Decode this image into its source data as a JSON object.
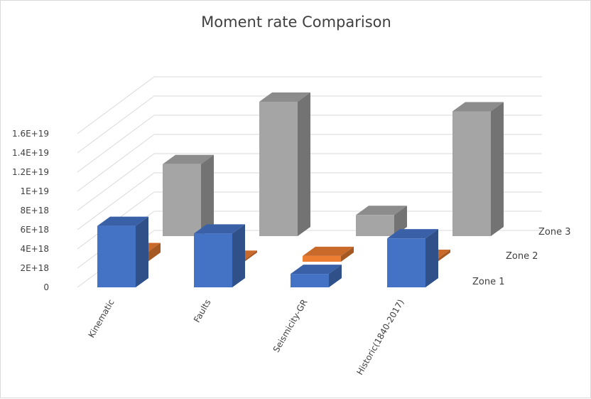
{
  "chart_data": {
    "type": "bar",
    "title": "Moment rate Comparison",
    "categories": [
      "Kinematic",
      "Faults",
      "Seismicity-GR",
      "Historic(1840-2017)"
    ],
    "series": [
      {
        "name": "Zone 1",
        "values": [
          6.4e+18,
          5.6e+18,
          1.4e+18,
          5.1e+18
        ],
        "color": "#4472c4"
      },
      {
        "name": "Zone 2",
        "values": [
          1e+18,
          2e+17,
          6e+17,
          3e+17
        ],
        "color": "#ed7d31"
      },
      {
        "name": "Zone 3",
        "values": [
          7.5e+18,
          1.4e+19,
          2.2e+18,
          1.3e+19
        ],
        "color": "#a5a5a5"
      }
    ],
    "yticks": [
      "0",
      "2E+18",
      "4E+18",
      "6E+18",
      "8E+18",
      "1E+19",
      "1.2E+19",
      "1.4E+19",
      "1.6E+19"
    ],
    "ylim": [
      0,
      1.6e+19
    ],
    "xlabel": "",
    "ylabel": "",
    "grid": true,
    "legend": "none"
  }
}
